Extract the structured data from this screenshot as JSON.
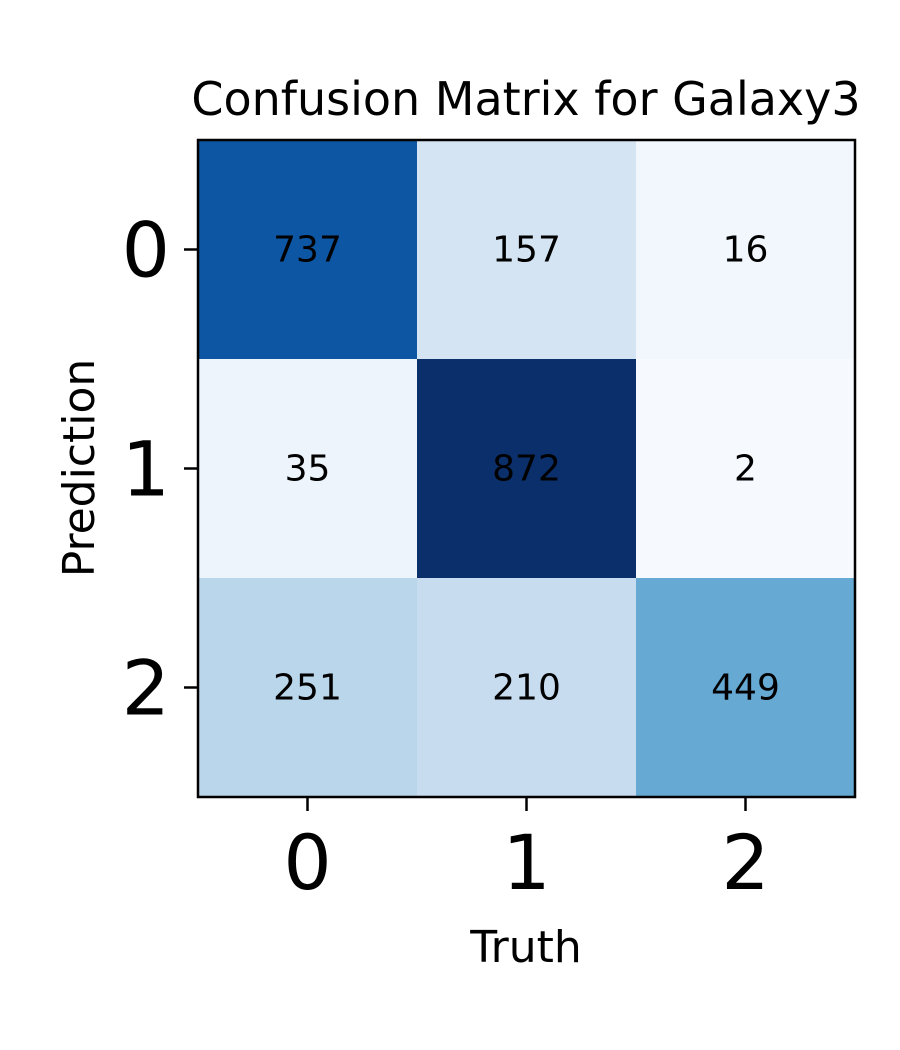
{
  "chart_data": {
    "type": "heatmap",
    "title": "Confusion Matrix for Galaxy3",
    "xlabel": "Truth",
    "ylabel": "Prediction",
    "x_categories": [
      "0",
      "1",
      "2"
    ],
    "y_categories": [
      "0",
      "1",
      "2"
    ],
    "values": [
      [
        737,
        157,
        16
      ],
      [
        35,
        872,
        2
      ],
      [
        251,
        210,
        449
      ]
    ],
    "colormap": "Blues",
    "cell_colors": [
      [
        "#0d56a3",
        "#d4e4f3",
        "#f2f7fd"
      ],
      [
        "#edf4fc",
        "#0a2f6b",
        "#f6faff"
      ],
      [
        "#bad6eb",
        "#c7dcef",
        "#66a9d3"
      ]
    ],
    "grid": false,
    "legend": "none"
  }
}
